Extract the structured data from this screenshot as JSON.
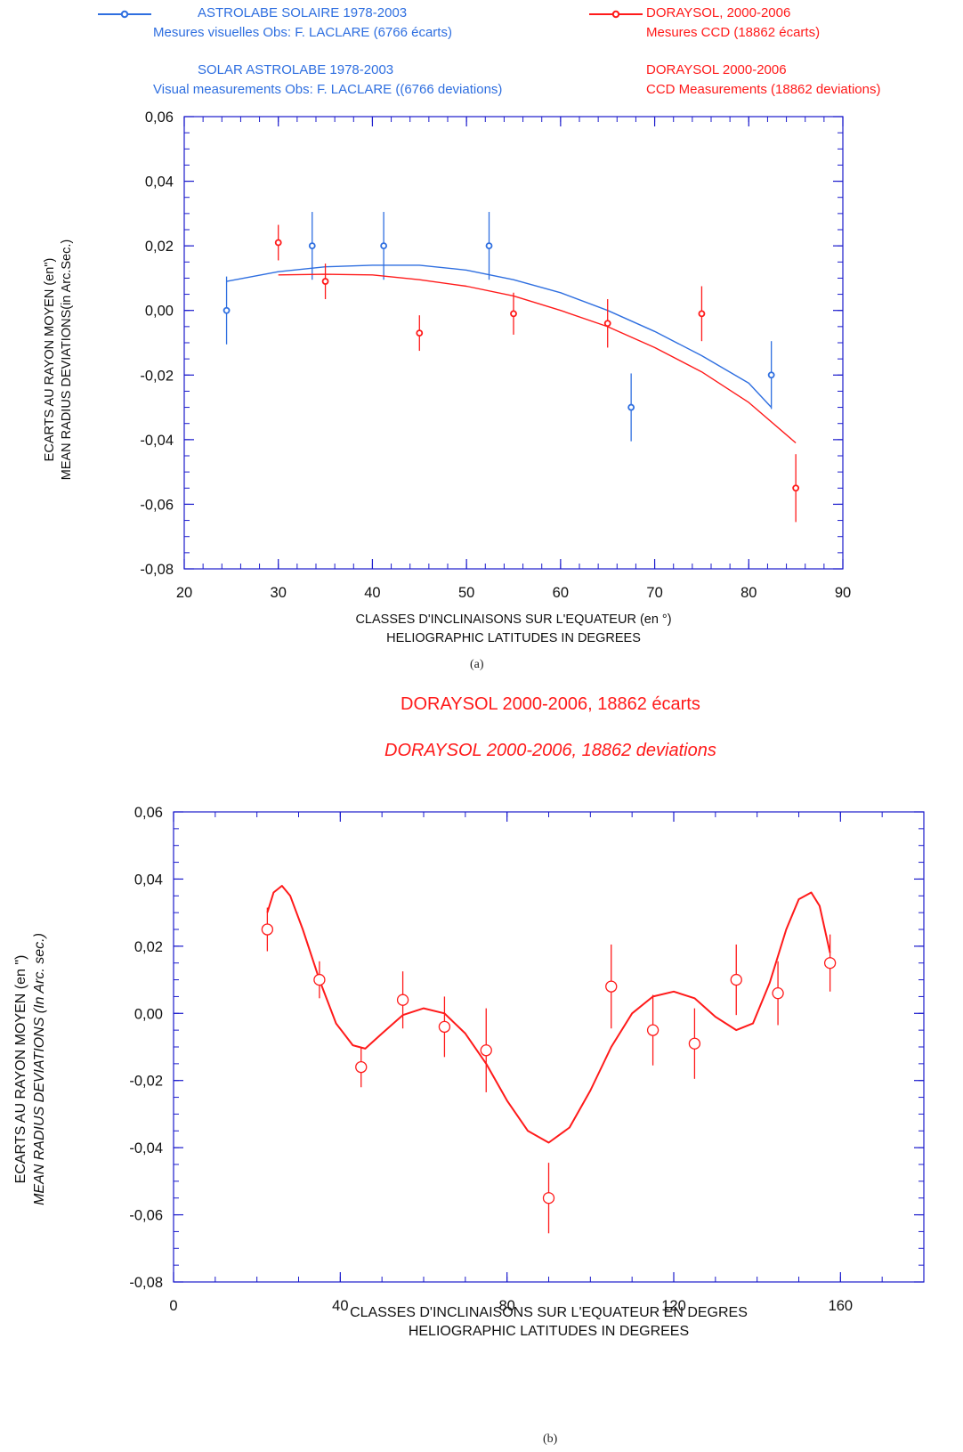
{
  "legend_a": {
    "blue_fr_title": "ASTROLABE SOLAIRE 1978-2003",
    "blue_fr_sub": "Mesures visuelles Obs: F. LACLARE  (6766 écarts)",
    "blue_en_title": "SOLAR ASTROLABE 1978-2003",
    "blue_en_sub": "Visual measurements Obs: F. LACLARE ((6766 deviations)",
    "red_fr_title": "DORAYSOL, 2000-2006",
    "red_fr_sub": "Mesures CCD (18862 écarts)",
    "red_en_title": "DORAYSOL 2000-2006",
    "red_en_sub": "CCD Measurements (18862 deviations)"
  },
  "sublabels": {
    "a": "(a)",
    "b": "(b)"
  },
  "title_b": {
    "fr": "DORAYSOL 2000-2006, 18862 écarts",
    "en": "DORAYSOL 2000-2006, 18862 deviations"
  },
  "colors": {
    "blue": "#2f6fe0",
    "red": "#ff1a1a",
    "axis": "#1a1acc"
  },
  "chart_data": [
    {
      "type": "scatter",
      "ylabel_fr": "ECARTS AU RAYON MOYEN (en\")",
      "ylabel_en": "MEAN RADIUS DEVIATIONS(in Arc.Sec.)",
      "xlabel_fr": "CLASSES D'INCLINAISONS SUR L'EQUATEUR (en °)",
      "xlabel_en": "HELIOGRAPHIC LATITUDES IN DEGREES",
      "xlim": [
        20,
        90
      ],
      "ylim": [
        -0.08,
        0.06
      ],
      "xticks": [
        20,
        30,
        40,
        50,
        60,
        70,
        80,
        90
      ],
      "yticks": [
        "0,06",
        "0,04",
        "0,02",
        "0,00",
        "-0,02",
        "-0,04",
        "-0,06",
        "-0,08"
      ],
      "yticks_values": [
        0.06,
        0.04,
        0.02,
        0.0,
        -0.02,
        -0.04,
        -0.06,
        -0.08
      ],
      "series": [
        {
          "name": "ASTROLABE SOLAIRE 1978-2003",
          "color": "#2f6fe0",
          "points": [
            {
              "x": 24.5,
              "y": 0.0,
              "err": 0.0105
            },
            {
              "x": 33.6,
              "y": 0.02,
              "err": 0.0105
            },
            {
              "x": 41.2,
              "y": 0.02,
              "err": 0.0105
            },
            {
              "x": 52.4,
              "y": 0.02,
              "err": 0.0105
            },
            {
              "x": 67.5,
              "y": -0.03,
              "err": 0.0105
            },
            {
              "x": 82.4,
              "y": -0.02,
              "err": 0.0105
            }
          ],
          "fit": [
            [
              24.5,
              0.009
            ],
            [
              30,
              0.012
            ],
            [
              35,
              0.0135
            ],
            [
              40,
              0.014
            ],
            [
              45,
              0.014
            ],
            [
              50,
              0.0125
            ],
            [
              55,
              0.0095
            ],
            [
              60,
              0.0055
            ],
            [
              65,
              0.0
            ],
            [
              70,
              -0.0065
            ],
            [
              75,
              -0.014
            ],
            [
              80,
              -0.0225
            ],
            [
              82.4,
              -0.03
            ]
          ]
        },
        {
          "name": "DORAYSOL, 2000-2006",
          "color": "#ff1a1a",
          "points": [
            {
              "x": 30.0,
              "y": 0.021,
              "err": 0.0055
            },
            {
              "x": 35.0,
              "y": 0.009,
              "err": 0.0055
            },
            {
              "x": 45.0,
              "y": -0.007,
              "err": 0.0055
            },
            {
              "x": 55.0,
              "y": -0.001,
              "err": 0.0065
            },
            {
              "x": 65.0,
              "y": -0.004,
              "err": 0.0075
            },
            {
              "x": 75.0,
              "y": -0.001,
              "err": 0.0085
            },
            {
              "x": 85.0,
              "y": -0.055,
              "err": 0.0105
            }
          ],
          "fit": [
            [
              30,
              0.011
            ],
            [
              35,
              0.0112
            ],
            [
              40,
              0.011
            ],
            [
              45,
              0.0095
            ],
            [
              50,
              0.0075
            ],
            [
              55,
              0.0045
            ],
            [
              60,
              0.0
            ],
            [
              65,
              -0.005
            ],
            [
              70,
              -0.0115
            ],
            [
              75,
              -0.019
            ],
            [
              80,
              -0.0285
            ],
            [
              85,
              -0.041
            ]
          ]
        }
      ]
    },
    {
      "type": "scatter",
      "ylabel_fr": "ECARTS  AU RAYON MOYEN (en \")",
      "ylabel_en": "MEAN RADIUS DEVIATIONS (In Arc. sec.)",
      "xlabel_fr": "CLASSES D'INCLINAISONS SUR L'EQUATEUR EN DEGRES",
      "xlabel_en": "HELIOGRAPHIC LATITUDES IN DEGREES",
      "xlim": [
        0,
        180
      ],
      "ylim": [
        -0.08,
        0.06
      ],
      "xticks": [
        0,
        40,
        80,
        120,
        160
      ],
      "yticks": [
        "0,06",
        "0,04",
        "0,02",
        "0,00",
        "-0,02",
        "-0,04",
        "-0,06",
        "-0,08"
      ],
      "yticks_values": [
        0.06,
        0.04,
        0.02,
        0.0,
        -0.02,
        -0.04,
        -0.06,
        -0.08
      ],
      "series": [
        {
          "name": "DORAYSOL 2000-2006, 18862 écarts",
          "color": "#ff1a1a",
          "points": [
            {
              "x": 22.5,
              "y": 0.025,
              "err": 0.0065
            },
            {
              "x": 35,
              "y": 0.01,
              "err": 0.0055
            },
            {
              "x": 45,
              "y": -0.016,
              "err": 0.006
            },
            {
              "x": 55,
              "y": 0.004,
              "err": 0.0085
            },
            {
              "x": 65,
              "y": -0.004,
              "err": 0.009
            },
            {
              "x": 75,
              "y": -0.011,
              "err": 0.0125
            },
            {
              "x": 90,
              "y": -0.055,
              "err": 0.0105
            },
            {
              "x": 105,
              "y": 0.008,
              "err": 0.0125
            },
            {
              "x": 115,
              "y": -0.005,
              "err": 0.0105
            },
            {
              "x": 125,
              "y": -0.009,
              "err": 0.0105
            },
            {
              "x": 135,
              "y": 0.01,
              "err": 0.0105
            },
            {
              "x": 145,
              "y": 0.006,
              "err": 0.0095
            },
            {
              "x": 157.5,
              "y": 0.015,
              "err": 0.0085
            }
          ],
          "fit": [
            [
              22.5,
              0.03
            ],
            [
              24,
              0.036
            ],
            [
              26,
              0.038
            ],
            [
              28,
              0.035
            ],
            [
              31,
              0.025
            ],
            [
              35,
              0.01
            ],
            [
              39,
              -0.003
            ],
            [
              43,
              -0.0095
            ],
            [
              46,
              -0.0105
            ],
            [
              50,
              -0.006
            ],
            [
              55,
              -0.0005
            ],
            [
              60,
              0.0015
            ],
            [
              65,
              0.0
            ],
            [
              70,
              -0.006
            ],
            [
              75,
              -0.015
            ],
            [
              80,
              -0.026
            ],
            [
              85,
              -0.035
            ],
            [
              90,
              -0.0385
            ],
            [
              95,
              -0.034
            ],
            [
              100,
              -0.023
            ],
            [
              105,
              -0.01
            ],
            [
              110,
              0.0
            ],
            [
              115,
              0.005
            ],
            [
              120,
              0.0065
            ],
            [
              125,
              0.0045
            ],
            [
              130,
              -0.001
            ],
            [
              135,
              -0.005
            ],
            [
              139,
              -0.003
            ],
            [
              143,
              0.009
            ],
            [
              147,
              0.025
            ],
            [
              150,
              0.034
            ],
            [
              153,
              0.036
            ],
            [
              155,
              0.032
            ],
            [
              157.5,
              0.018
            ]
          ]
        }
      ]
    }
  ]
}
